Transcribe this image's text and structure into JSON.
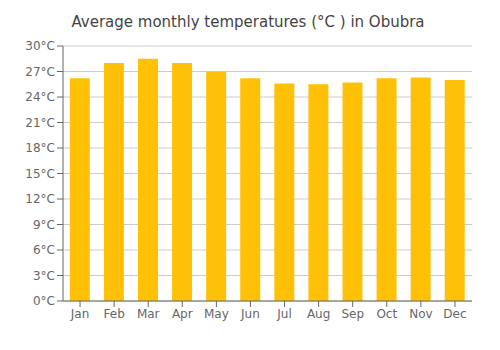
{
  "chart_data": {
    "type": "bar",
    "title": "Average monthly temperatures (°C ) in Obubra",
    "categories": [
      "Jan",
      "Feb",
      "Mar",
      "Apr",
      "May",
      "Jun",
      "Jul",
      "Aug",
      "Sep",
      "Oct",
      "Nov",
      "Dec"
    ],
    "values": [
      26.2,
      28.0,
      28.5,
      28.0,
      27.0,
      26.2,
      25.6,
      25.5,
      25.7,
      26.2,
      26.3,
      26.0
    ],
    "color": "#FFC107",
    "ylim": [
      0,
      30
    ],
    "yticks": [
      {
        "value": 0,
        "label": "0°C"
      },
      {
        "value": 3,
        "label": "3°C"
      },
      {
        "value": 6,
        "label": "6°C"
      },
      {
        "value": 9,
        "label": "9°C"
      },
      {
        "value": 12,
        "label": "12°C"
      },
      {
        "value": 15,
        "label": "15°C"
      },
      {
        "value": 18,
        "label": "18°C"
      },
      {
        "value": 21,
        "label": "21°C"
      },
      {
        "value": 24,
        "label": "24°C"
      },
      {
        "value": 27,
        "label": "27°C"
      },
      {
        "value": 30,
        "label": "30°C"
      }
    ],
    "grid": true
  }
}
